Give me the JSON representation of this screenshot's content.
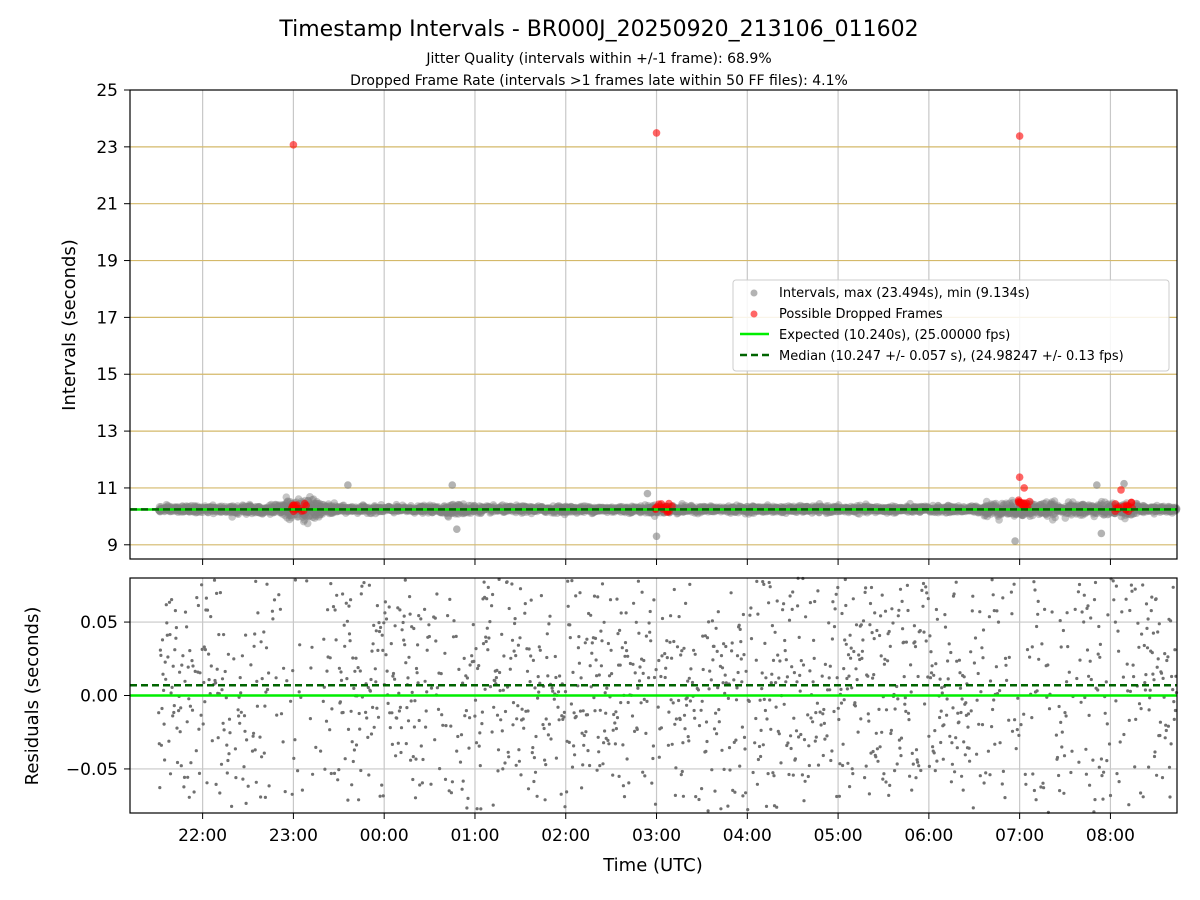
{
  "title": "Timestamp Intervals - BR000J_20250920_213106_011602",
  "subtitle_1": "Jitter Quality (intervals within +/-1 frame): 68.9%",
  "subtitle_2": "Dropped Frame Rate (intervals >1 frames late within 50 FF files): 4.1%",
  "colors": {
    "intervals": "#808080",
    "dropped": "#ff0000",
    "expected": "#00ee00",
    "median": "#006400",
    "ygrid_top": "#d4b96a",
    "grid": "#c8c8c8"
  },
  "chart_data": [
    {
      "type": "scatter",
      "ylabel": "Intervals (seconds)",
      "ylim": [
        8.5,
        25
      ],
      "yticks": [
        "9",
        "11",
        "13",
        "15",
        "17",
        "19",
        "21",
        "23",
        "25"
      ],
      "grid": true,
      "legend_position": "center-right",
      "legend": [
        "Intervals, max (23.494s), min (9.134s)",
        "Possible Dropped Frames",
        "Expected (10.240s), (25.00000 fps)",
        "Median (10.247 +/- 0.057 s), (24.98247 +/- 0.13 fps)"
      ],
      "series": [
        {
          "name": "Intervals, max (23.494s), min (9.134s)",
          "kind": "scatter",
          "summary": {
            "max": 23.494,
            "min": 9.134
          }
        },
        {
          "name": "Possible Dropped Frames",
          "kind": "scatter",
          "x": [
            "23:00",
            "03:00",
            "07:00",
            "07:00",
            "07:03",
            "08:07",
            "08:11"
          ],
          "y": [
            23.07,
            23.49,
            23.38,
            11.38,
            11.0,
            10.93,
            10.35
          ]
        },
        {
          "name": "Expected (10.240s), (25.00000 fps)",
          "kind": "hline",
          "y": 10.24
        },
        {
          "name": "Median (10.247 +/- 0.057 s), (24.98247 +/- 0.13 fps)",
          "kind": "hline",
          "y": 10.247
        }
      ]
    },
    {
      "type": "scatter",
      "ylabel": "Residuals (seconds)",
      "xlabel": "Time (UTC)",
      "ylim": [
        -0.08,
        0.08
      ],
      "yticks": [
        "0.05",
        "0.00",
        "−0.05"
      ],
      "xticks": [
        "22:00",
        "23:00",
        "00:00",
        "01:00",
        "02:00",
        "03:00",
        "04:00",
        "05:00",
        "06:00",
        "07:00",
        "08:00"
      ],
      "grid": true,
      "series": [
        {
          "name": "Expected",
          "kind": "hline",
          "y": 0.0
        },
        {
          "name": "Median",
          "kind": "hline",
          "y": 0.007
        }
      ]
    }
  ]
}
